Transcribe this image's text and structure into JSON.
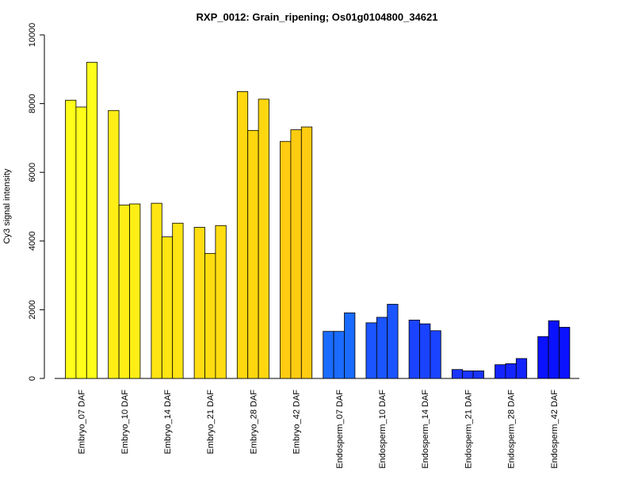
{
  "chart_data": {
    "type": "bar",
    "title": "RXP_0012: Grain_ripening; Os01g0104800_34621",
    "xlabel": "",
    "ylabel": "Cy3 signal intensity",
    "ylim": [
      0,
      10000
    ],
    "yticks": [
      0,
      2000,
      4000,
      6000,
      8000,
      10000
    ],
    "grid": false,
    "legend": "none",
    "categories": [
      "Embryo_07 DAF",
      "Embryo_10 DAF",
      "Embryo_14 DAF",
      "Embryo_21 DAF",
      "Embryo_28 DAF",
      "Embryo_42 DAF",
      "Endosperm_07 DAF",
      "Endosperm_10 DAF",
      "Endosperm_14 DAF",
      "Endosperm_21 DAF",
      "Endosperm_28 DAF",
      "Endosperm_42 DAF"
    ],
    "groups": [
      {
        "color": "#FFFF1A",
        "values": [
          8100,
          7900,
          9200
        ]
      },
      {
        "color": "#FFEE16",
        "values": [
          7800,
          5050,
          5080
        ]
      },
      {
        "color": "#FFE512",
        "values": [
          5100,
          4120,
          4520
        ]
      },
      {
        "color": "#FFDD12",
        "values": [
          4400,
          3640,
          4450
        ]
      },
      {
        "color": "#FFD70F",
        "values": [
          8350,
          7220,
          8130
        ]
      },
      {
        "color": "#FFCC11",
        "values": [
          6900,
          7240,
          7320
        ]
      },
      {
        "color": "#1A6BFF",
        "values": [
          1370,
          1370,
          1910
        ]
      },
      {
        "color": "#1A55FF",
        "values": [
          1620,
          1780,
          2160
        ]
      },
      {
        "color": "#1A43FF",
        "values": [
          1700,
          1590,
          1390
        ]
      },
      {
        "color": "#1A35FF",
        "values": [
          260,
          220,
          220
        ]
      },
      {
        "color": "#1424FF",
        "values": [
          400,
          430,
          580
        ]
      },
      {
        "color": "#0A12FF",
        "values": [
          1220,
          1680,
          1490
        ]
      }
    ]
  }
}
